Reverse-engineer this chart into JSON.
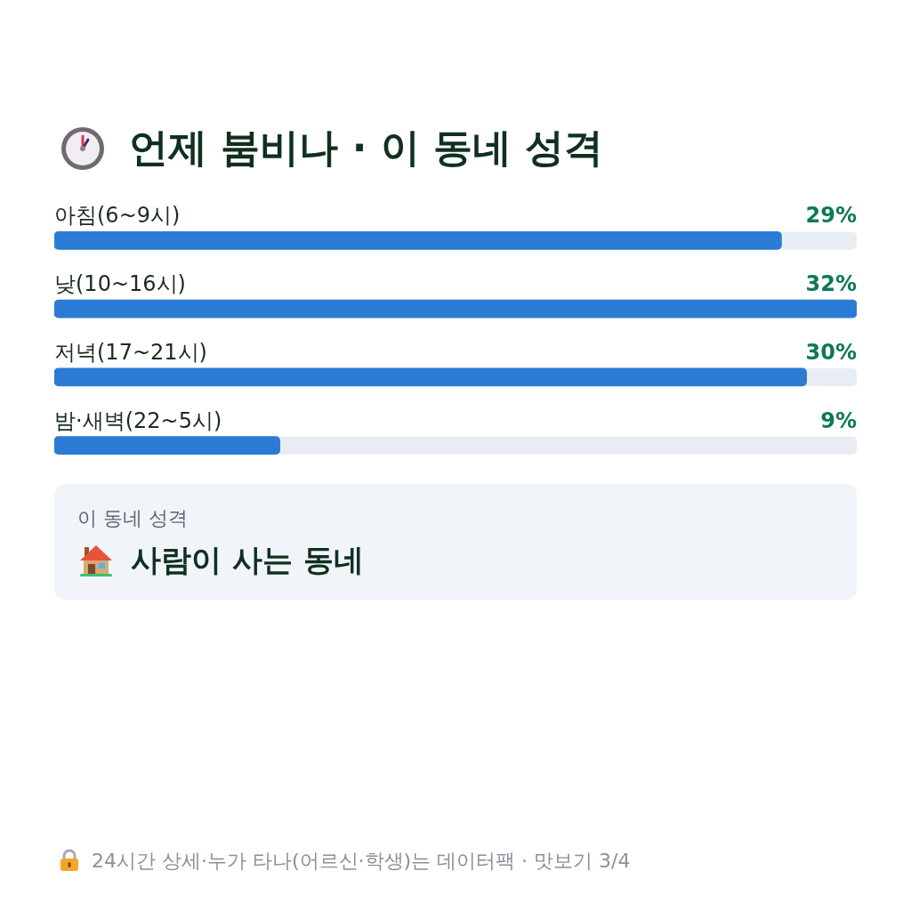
{
  "chart_data": {
    "type": "bar",
    "orientation": "horizontal",
    "title": "언제 붐비나 · 이 동네 성격",
    "categories": [
      "아침(6~9시)",
      "낮(10~16시)",
      "저녁(17~21시)",
      "밤·새벽(22~5시)"
    ],
    "values": [
      29,
      32,
      30,
      9
    ],
    "value_labels": [
      "29%",
      "32%",
      "30%",
      "9%"
    ],
    "color": "#2b7bd4",
    "tick_labels": "y",
    "annotations": [
      "이 동네 성격",
      "사람이 사는 동네",
      "24시간 상세·누가 타나(어르신·학생)는 데이터팩 · 맛보기 3/4"
    ]
  }
}
